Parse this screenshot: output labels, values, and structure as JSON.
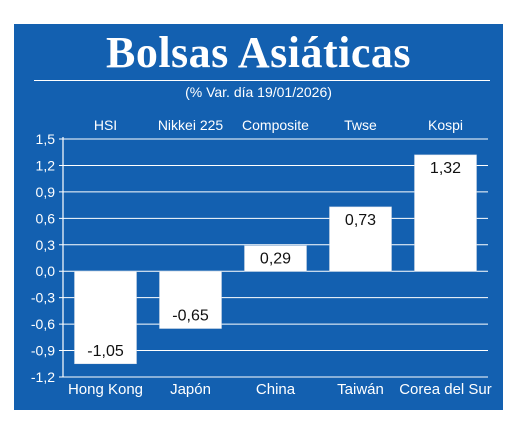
{
  "title": "Bolsas Asiáticas",
  "subtitle": "(% Var. día  19/01/2026)",
  "colors": {
    "panel": "#1360b0",
    "bar": "#ffffff",
    "grid": "#ffffff",
    "text": "#ffffff",
    "label_text": "#111111"
  },
  "chart_data": {
    "type": "bar",
    "title": "Bolsas Asiáticas",
    "subtitle": "(% Var. día  19/01/2026)",
    "categories": [
      "Hong Kong",
      "Japón",
      "China",
      "Taiwán",
      "Corea del Sur"
    ],
    "index_names": [
      "HSI",
      "Nikkei 225",
      "Composite",
      "Twse",
      "Kospi"
    ],
    "values": [
      -1.05,
      -0.65,
      0.29,
      0.73,
      1.32
    ],
    "value_labels": [
      "-1,05",
      "-0,65",
      "0,29",
      "0,73",
      "1,32"
    ],
    "ylim": [
      -1.2,
      1.5
    ],
    "yticks": [
      1.5,
      1.2,
      0.9,
      0.6,
      0.3,
      0.0,
      -0.3,
      -0.6,
      -0.9,
      -1.2
    ],
    "ytick_labels": [
      "1,5",
      "1,2",
      "0,9",
      "0,6",
      "0,3",
      "0,0",
      "-0,3",
      "-0,6",
      "-0,9",
      "-1,2"
    ],
    "grid": true,
    "legend": "none"
  }
}
